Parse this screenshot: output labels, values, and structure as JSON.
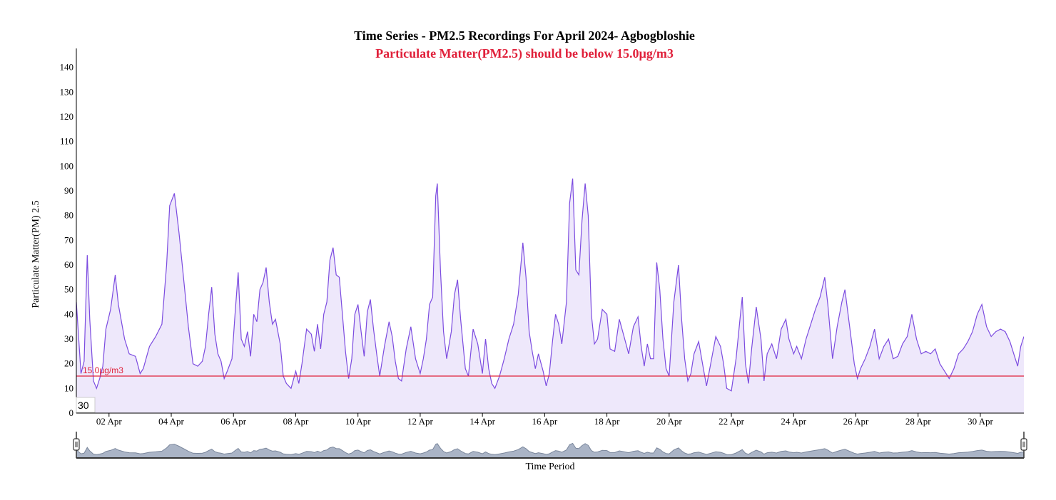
{
  "chart_data": {
    "type": "area",
    "title": "Time Series - PM2.5 Recordings For April 2024- Agbogbloshie",
    "subtitle": "Particulate Matter(PM2.5) should be below 15.0µg/m3",
    "ylabel": "Particulate Matter(PM) 2.5",
    "xlabel": "Time Period",
    "ylim": [
      0,
      150
    ],
    "xlim": [
      0.95,
      31.4
    ],
    "y_ticks": [
      0,
      10,
      20,
      30,
      40,
      50,
      60,
      70,
      80,
      90,
      100,
      110,
      120,
      130,
      140
    ],
    "x_ticks": [
      {
        "x": 2,
        "label": "02 Apr"
      },
      {
        "x": 4,
        "label": "04 Apr"
      },
      {
        "x": 6,
        "label": "06 Apr"
      },
      {
        "x": 8,
        "label": "08 Apr"
      },
      {
        "x": 10,
        "label": "10 Apr"
      },
      {
        "x": 12,
        "label": "12 Apr"
      },
      {
        "x": 14,
        "label": "14 Apr"
      },
      {
        "x": 16,
        "label": "16 Apr"
      },
      {
        "x": 18,
        "label": "18 Apr"
      },
      {
        "x": 20,
        "label": "20 Apr"
      },
      {
        "x": 22,
        "label": "22 Apr"
      },
      {
        "x": 24,
        "label": "24 Apr"
      },
      {
        "x": 26,
        "label": "26 Apr"
      },
      {
        "x": 28,
        "label": "28 Apr"
      },
      {
        "x": 30,
        "label": "30 Apr"
      }
    ],
    "threshold": {
      "value": 15.0,
      "label": "15.0µg/m3",
      "color": "#e0203a"
    },
    "hover_value": "30",
    "grid": false,
    "series": [
      {
        "color": "#7c4ce0",
        "fill": "#eee8fb",
        "points": [
          [
            0.95,
            45
          ],
          [
            1.1,
            16
          ],
          [
            1.2,
            21
          ],
          [
            1.3,
            64
          ],
          [
            1.38,
            38
          ],
          [
            1.5,
            13
          ],
          [
            1.6,
            10
          ],
          [
            1.7,
            14
          ],
          [
            1.8,
            19
          ],
          [
            1.9,
            34
          ],
          [
            2.05,
            42
          ],
          [
            2.2,
            56
          ],
          [
            2.3,
            44
          ],
          [
            2.5,
            30
          ],
          [
            2.65,
            24
          ],
          [
            2.85,
            23
          ],
          [
            3.0,
            16
          ],
          [
            3.1,
            18
          ],
          [
            3.3,
            27
          ],
          [
            3.5,
            31
          ],
          [
            3.7,
            36
          ],
          [
            3.85,
            60
          ],
          [
            3.95,
            84
          ],
          [
            4.1,
            89
          ],
          [
            4.25,
            73
          ],
          [
            4.4,
            54
          ],
          [
            4.55,
            35
          ],
          [
            4.7,
            20
          ],
          [
            4.85,
            19
          ],
          [
            5.0,
            21
          ],
          [
            5.1,
            27
          ],
          [
            5.2,
            40
          ],
          [
            5.3,
            51
          ],
          [
            5.4,
            32
          ],
          [
            5.5,
            24
          ],
          [
            5.6,
            21
          ],
          [
            5.7,
            14
          ],
          [
            5.8,
            17
          ],
          [
            5.95,
            22
          ],
          [
            6.05,
            40
          ],
          [
            6.15,
            57
          ],
          [
            6.25,
            30
          ],
          [
            6.35,
            27
          ],
          [
            6.45,
            33
          ],
          [
            6.55,
            23
          ],
          [
            6.65,
            40
          ],
          [
            6.75,
            37
          ],
          [
            6.85,
            50
          ],
          [
            6.95,
            53
          ],
          [
            7.05,
            59
          ],
          [
            7.15,
            45
          ],
          [
            7.25,
            36
          ],
          [
            7.35,
            38
          ],
          [
            7.5,
            28
          ],
          [
            7.6,
            15
          ],
          [
            7.7,
            12
          ],
          [
            7.85,
            10
          ],
          [
            8.0,
            17
          ],
          [
            8.1,
            12
          ],
          [
            8.2,
            20
          ],
          [
            8.35,
            34
          ],
          [
            8.5,
            32
          ],
          [
            8.6,
            25
          ],
          [
            8.7,
            36
          ],
          [
            8.8,
            26
          ],
          [
            8.9,
            40
          ],
          [
            9.0,
            45
          ],
          [
            9.1,
            62
          ],
          [
            9.2,
            67
          ],
          [
            9.3,
            56
          ],
          [
            9.4,
            55
          ],
          [
            9.5,
            40
          ],
          [
            9.6,
            25
          ],
          [
            9.7,
            14
          ],
          [
            9.8,
            22
          ],
          [
            9.9,
            40
          ],
          [
            10.0,
            44
          ],
          [
            10.1,
            33
          ],
          [
            10.2,
            23
          ],
          [
            10.3,
            41
          ],
          [
            10.4,
            46
          ],
          [
            10.5,
            34
          ],
          [
            10.6,
            24
          ],
          [
            10.7,
            15
          ],
          [
            10.85,
            27
          ],
          [
            11.0,
            37
          ],
          [
            11.1,
            31
          ],
          [
            11.2,
            21
          ],
          [
            11.3,
            14
          ],
          [
            11.4,
            13
          ],
          [
            11.55,
            26
          ],
          [
            11.7,
            35
          ],
          [
            11.85,
            22
          ],
          [
            12.0,
            16
          ],
          [
            12.1,
            22
          ],
          [
            12.2,
            30
          ],
          [
            12.3,
            44
          ],
          [
            12.4,
            47
          ],
          [
            12.5,
            88
          ],
          [
            12.55,
            93
          ],
          [
            12.65,
            58
          ],
          [
            12.75,
            33
          ],
          [
            12.85,
            22
          ],
          [
            13.0,
            33
          ],
          [
            13.1,
            48
          ],
          [
            13.2,
            54
          ],
          [
            13.3,
            38
          ],
          [
            13.45,
            18
          ],
          [
            13.55,
            15
          ],
          [
            13.7,
            34
          ],
          [
            13.85,
            28
          ],
          [
            14.0,
            16
          ],
          [
            14.1,
            30
          ],
          [
            14.2,
            18
          ],
          [
            14.3,
            12
          ],
          [
            14.4,
            10
          ],
          [
            14.55,
            15
          ],
          [
            14.7,
            22
          ],
          [
            14.85,
            30
          ],
          [
            15.0,
            36
          ],
          [
            15.15,
            48
          ],
          [
            15.3,
            69
          ],
          [
            15.4,
            55
          ],
          [
            15.5,
            33
          ],
          [
            15.6,
            25
          ],
          [
            15.7,
            18
          ],
          [
            15.8,
            24
          ],
          [
            15.95,
            17
          ],
          [
            16.05,
            11
          ],
          [
            16.15,
            16
          ],
          [
            16.25,
            29
          ],
          [
            16.35,
            40
          ],
          [
            16.45,
            36
          ],
          [
            16.55,
            28
          ],
          [
            16.7,
            45
          ],
          [
            16.8,
            85
          ],
          [
            16.9,
            95
          ],
          [
            17.0,
            58
          ],
          [
            17.1,
            56
          ],
          [
            17.2,
            78
          ],
          [
            17.3,
            93
          ],
          [
            17.4,
            80
          ],
          [
            17.5,
            40
          ],
          [
            17.6,
            28
          ],
          [
            17.7,
            30
          ],
          [
            17.85,
            42
          ],
          [
            18.0,
            40
          ],
          [
            18.1,
            26
          ],
          [
            18.25,
            25
          ],
          [
            18.4,
            38
          ],
          [
            18.55,
            31
          ],
          [
            18.7,
            24
          ],
          [
            18.85,
            35
          ],
          [
            19.0,
            39
          ],
          [
            19.1,
            27
          ],
          [
            19.2,
            19
          ],
          [
            19.3,
            28
          ],
          [
            19.4,
            22
          ],
          [
            19.5,
            22
          ],
          [
            19.6,
            61
          ],
          [
            19.7,
            50
          ],
          [
            19.8,
            30
          ],
          [
            19.9,
            18
          ],
          [
            20.0,
            15
          ],
          [
            20.15,
            45
          ],
          [
            20.3,
            60
          ],
          [
            20.4,
            38
          ],
          [
            20.5,
            22
          ],
          [
            20.6,
            13
          ],
          [
            20.7,
            16
          ],
          [
            20.8,
            24
          ],
          [
            20.95,
            29
          ],
          [
            21.1,
            18
          ],
          [
            21.2,
            11
          ],
          [
            21.35,
            21
          ],
          [
            21.5,
            31
          ],
          [
            21.65,
            27
          ],
          [
            21.75,
            20
          ],
          [
            21.85,
            10
          ],
          [
            22.0,
            9
          ],
          [
            22.15,
            22
          ],
          [
            22.3,
            41
          ],
          [
            22.35,
            47
          ],
          [
            22.45,
            20
          ],
          [
            22.55,
            12
          ],
          [
            22.65,
            26
          ],
          [
            22.8,
            43
          ],
          [
            22.95,
            30
          ],
          [
            23.05,
            13
          ],
          [
            23.15,
            24
          ],
          [
            23.3,
            28
          ],
          [
            23.45,
            22
          ],
          [
            23.6,
            34
          ],
          [
            23.75,
            38
          ],
          [
            23.85,
            30
          ],
          [
            24.0,
            24
          ],
          [
            24.1,
            27
          ],
          [
            24.25,
            22
          ],
          [
            24.4,
            30
          ],
          [
            24.55,
            36
          ],
          [
            24.7,
            42
          ],
          [
            24.85,
            47
          ],
          [
            25.0,
            55
          ],
          [
            25.1,
            44
          ],
          [
            25.25,
            22
          ],
          [
            25.4,
            35
          ],
          [
            25.55,
            45
          ],
          [
            25.65,
            50
          ],
          [
            25.8,
            35
          ],
          [
            25.95,
            20
          ],
          [
            26.05,
            14
          ],
          [
            26.15,
            18
          ],
          [
            26.3,
            22
          ],
          [
            26.45,
            27
          ],
          [
            26.6,
            34
          ],
          [
            26.75,
            22
          ],
          [
            26.9,
            27
          ],
          [
            27.05,
            30
          ],
          [
            27.2,
            22
          ],
          [
            27.35,
            23
          ],
          [
            27.5,
            28
          ],
          [
            27.65,
            31
          ],
          [
            27.8,
            40
          ],
          [
            27.95,
            30
          ],
          [
            28.1,
            24
          ],
          [
            28.25,
            25
          ],
          [
            28.4,
            24
          ],
          [
            28.55,
            26
          ],
          [
            28.7,
            20
          ],
          [
            28.85,
            17
          ],
          [
            29.0,
            14
          ],
          [
            29.15,
            18
          ],
          [
            29.3,
            24
          ],
          [
            29.45,
            26
          ],
          [
            29.6,
            29
          ],
          [
            29.75,
            33
          ],
          [
            29.9,
            40
          ],
          [
            30.05,
            44
          ],
          [
            30.2,
            35
          ],
          [
            30.35,
            31
          ],
          [
            30.5,
            33
          ],
          [
            30.65,
            34
          ],
          [
            30.8,
            33
          ],
          [
            30.95,
            29
          ],
          [
            31.1,
            23
          ],
          [
            31.2,
            19
          ],
          [
            31.3,
            27
          ],
          [
            31.4,
            31
          ]
        ]
      }
    ]
  },
  "colors": {
    "line": "#7c4ce0",
    "area_fill": "#eee8fb",
    "threshold": "#e0203a",
    "navigator_fill": "#aab4c6",
    "navigator_line": "#7b879c"
  }
}
